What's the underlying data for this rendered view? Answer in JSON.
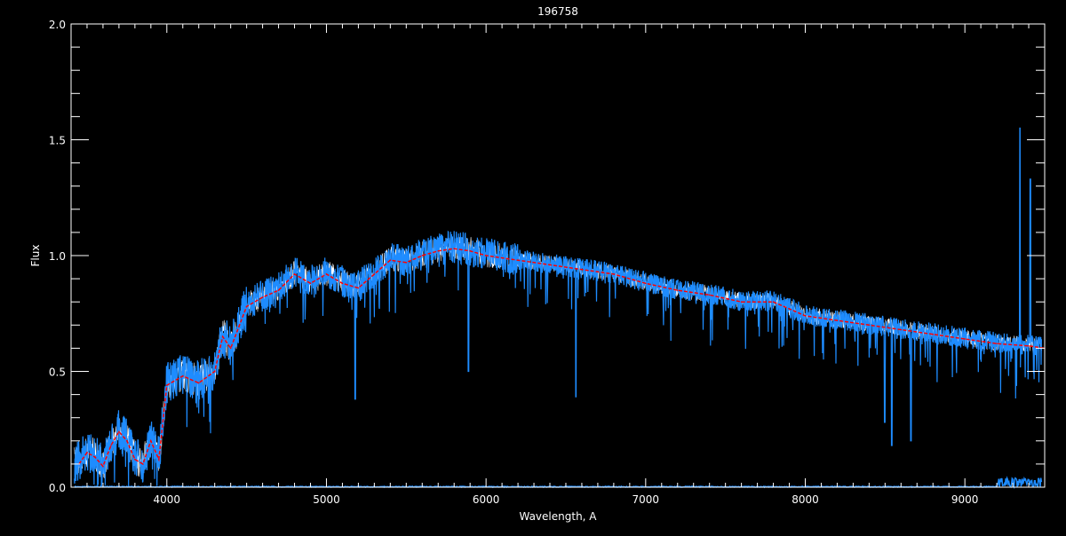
{
  "chart_data": {
    "type": "line",
    "title": "196758",
    "xlabel": "Wavelength, A",
    "ylabel": "Flux",
    "xlim": [
      3400,
      9500
    ],
    "ylim": [
      0.0,
      2.0
    ],
    "x_ticks": [
      4000,
      5000,
      6000,
      7000,
      8000,
      9000
    ],
    "y_ticks": [
      "0.0",
      "0.5",
      "1.0",
      "1.5",
      "2.0"
    ],
    "grid": false,
    "colors": {
      "background": "#000000",
      "axes": "#ffffff",
      "spectrum": "#1e8cff",
      "smoothed": "#ff0000",
      "observed": "#ffffff"
    },
    "series": [
      {
        "role": "smoothed",
        "x": [
          3450,
          3500,
          3550,
          3600,
          3650,
          3700,
          3750,
          3800,
          3850,
          3900,
          3950,
          4000,
          4100,
          4200,
          4300,
          4350,
          4400,
          4500,
          4600,
          4700,
          4800,
          4900,
          5000,
          5100,
          5200,
          5300,
          5400,
          5500,
          5600,
          5700,
          5800,
          5900,
          6000,
          6200,
          6400,
          6600,
          6800,
          7000,
          7200,
          7400,
          7600,
          7800,
          8000,
          8200,
          8400,
          8600,
          8800,
          9000,
          9200,
          9400,
          9500
        ],
        "y": [
          0.1,
          0.15,
          0.13,
          0.09,
          0.18,
          0.24,
          0.2,
          0.12,
          0.1,
          0.2,
          0.12,
          0.44,
          0.48,
          0.45,
          0.5,
          0.65,
          0.6,
          0.78,
          0.82,
          0.85,
          0.92,
          0.88,
          0.92,
          0.88,
          0.86,
          0.92,
          0.98,
          0.97,
          1.0,
          1.02,
          1.03,
          1.02,
          1.0,
          0.98,
          0.96,
          0.94,
          0.92,
          0.88,
          0.85,
          0.83,
          0.8,
          0.8,
          0.74,
          0.72,
          0.7,
          0.68,
          0.66,
          0.64,
          0.62,
          0.61,
          0.6
        ]
      }
    ],
    "absorption_lines": [
      {
        "x": 5180,
        "y": 0.38
      },
      {
        "x": 5890,
        "y": 0.5
      },
      {
        "x": 6563,
        "y": 0.39
      },
      {
        "x": 8498,
        "y": 0.28
      },
      {
        "x": 8542,
        "y": 0.18
      },
      {
        "x": 8662,
        "y": 0.2
      }
    ],
    "emission_spikes": [
      {
        "x": 9345,
        "y": 1.55
      },
      {
        "x": 9410,
        "y": 1.33
      }
    ]
  }
}
